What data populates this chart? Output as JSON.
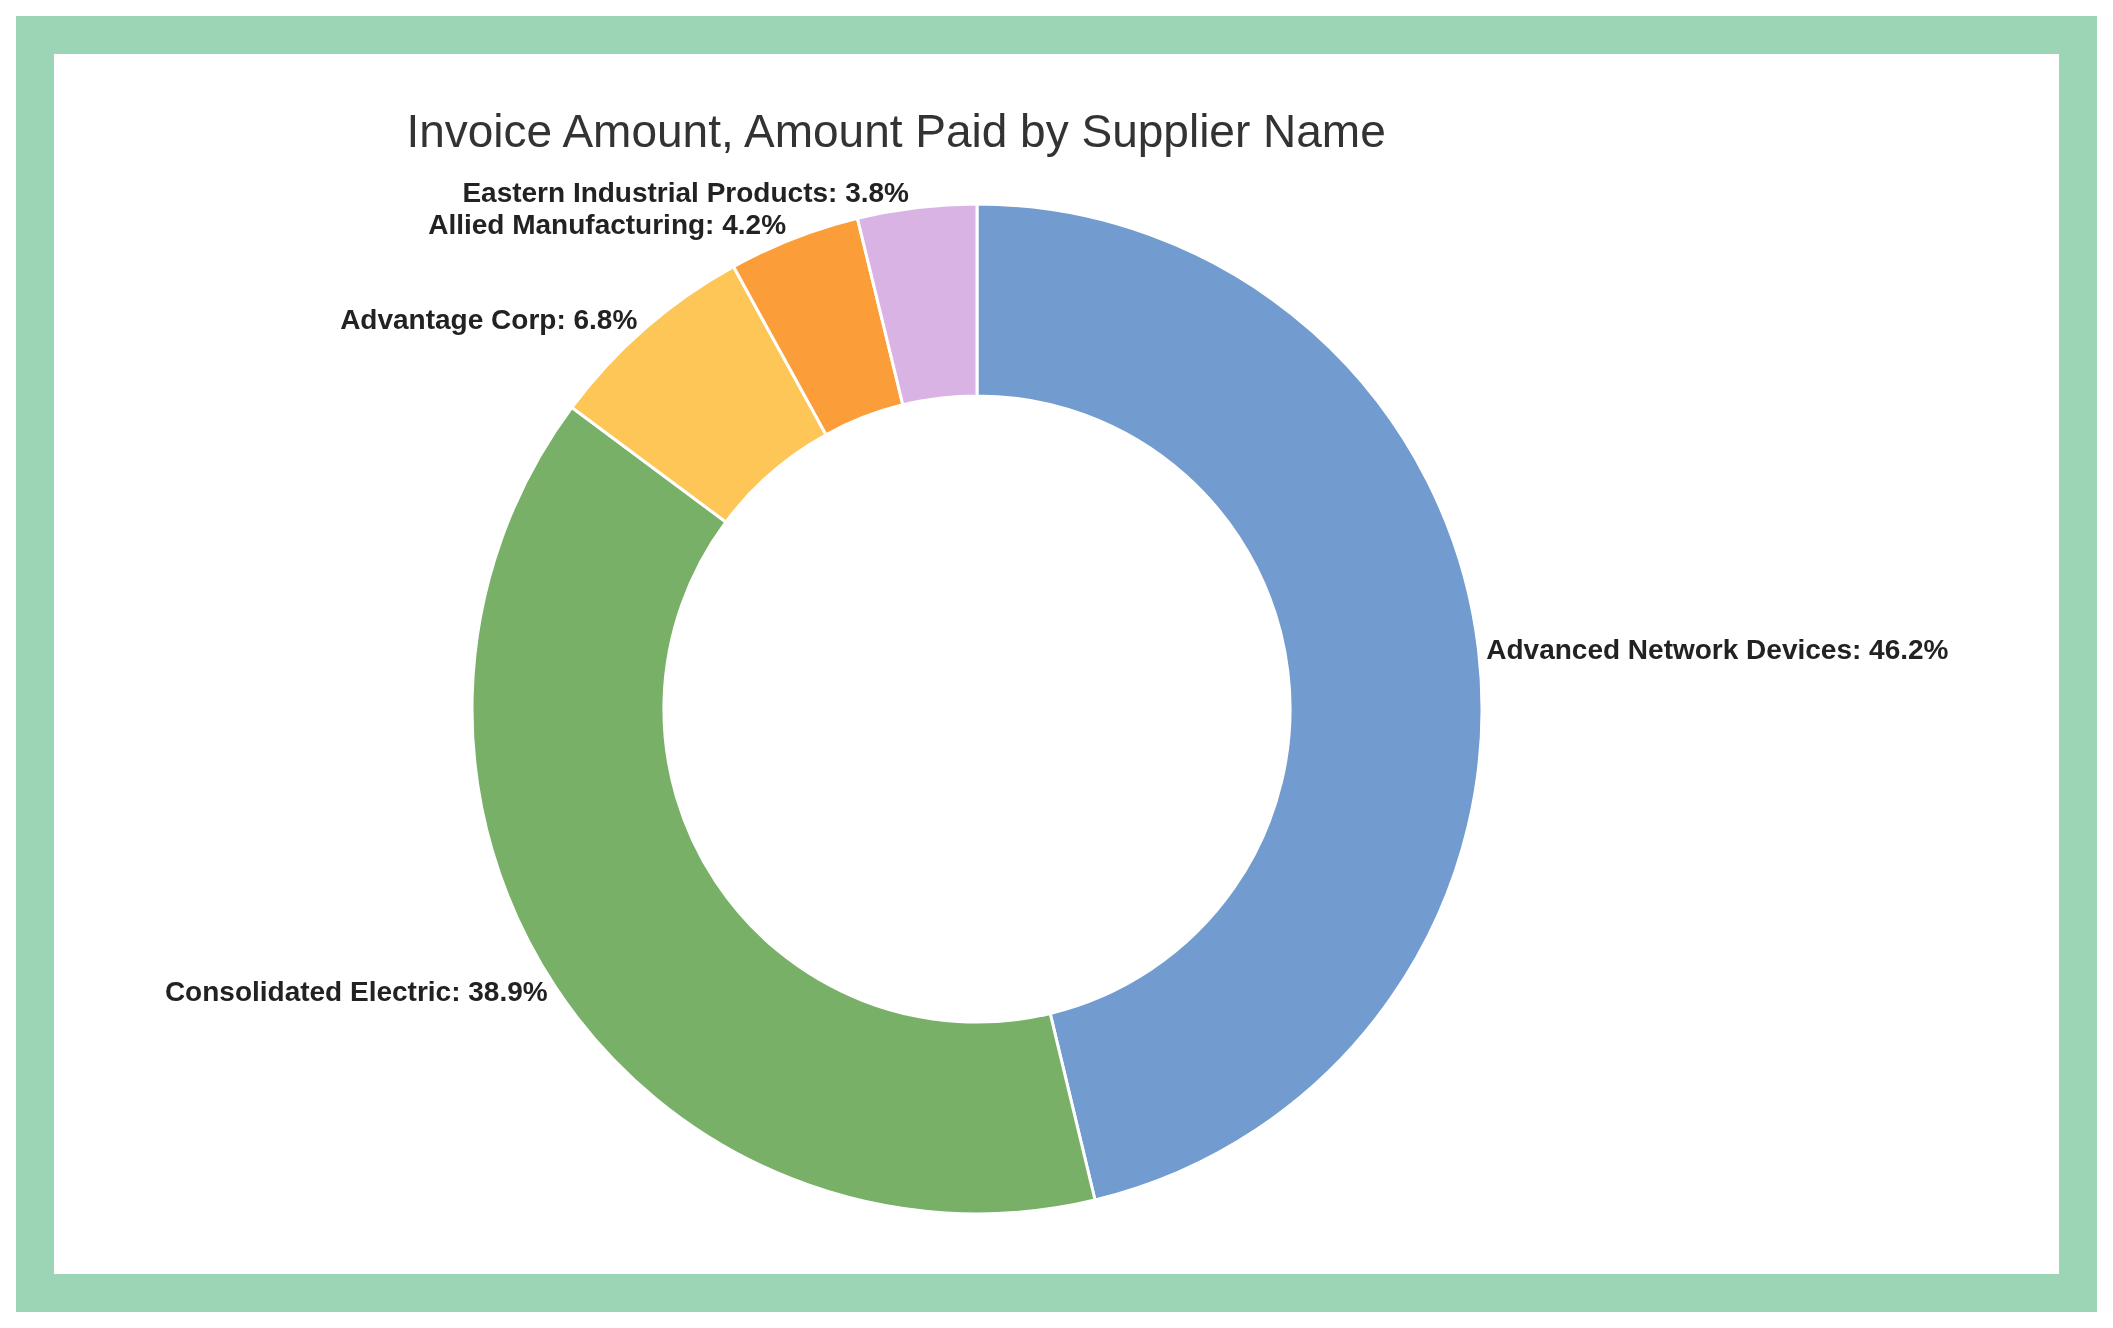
{
  "chart_data": {
    "type": "donut",
    "title": "Invoice Amount, Amount Paid by Supplier Name",
    "categories": [
      "Advanced Network Devices",
      "Consolidated Electric",
      "Advantage Corp",
      "Allied Manufacturing",
      "Eastern Industrial Products"
    ],
    "values": [
      46.2,
      38.9,
      6.8,
      4.2,
      3.8
    ],
    "value_labels": [
      "46.2%",
      "38.9%",
      "6.8%",
      "4.2%",
      "3.8%"
    ],
    "colors": [
      "#729bcf",
      "#78b068",
      "#fdc656",
      "#fb9e3a",
      "#d9b3e3"
    ]
  }
}
